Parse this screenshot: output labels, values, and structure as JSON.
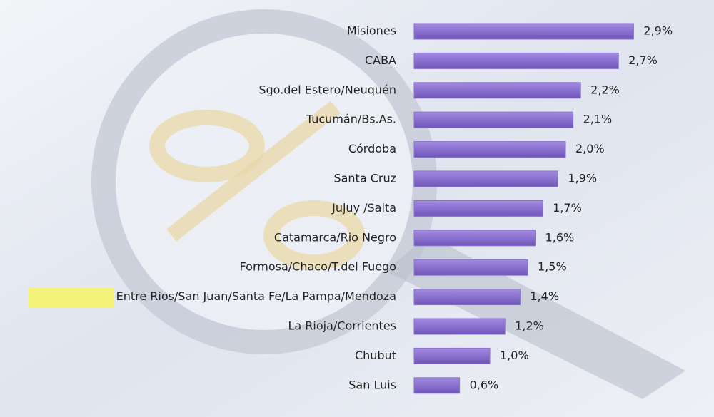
{
  "chart_data": {
    "type": "bar",
    "orientation": "horizontal",
    "categories": [
      "Misiones",
      "CABA",
      "Sgo.del Estero/Neuquén",
      "Tucumán/Bs.As.",
      "Córdoba",
      "Santa Cruz",
      "Jujuy /Salta",
      "Catamarca/Rio Negro",
      "Formosa/Chaco/T.del Fuego",
      "Entre Rios/San Juan/Santa Fe/La Pampa/Mendoza",
      "La Rioja/Corrientes",
      "Chubut",
      "San Luis"
    ],
    "values": [
      2.9,
      2.7,
      2.2,
      2.1,
      2.0,
      1.9,
      1.7,
      1.6,
      1.5,
      1.4,
      1.2,
      1.0,
      0.6
    ],
    "value_labels": [
      "2,9%",
      "2,7%",
      "2,2%",
      "2,1%",
      "2,0%",
      "1,9%",
      "1,7%",
      "1,6%",
      "1,5%",
      "1,4%",
      "1,2%",
      "1,0%",
      "0,6%"
    ],
    "color": "#8a70cf"
  }
}
